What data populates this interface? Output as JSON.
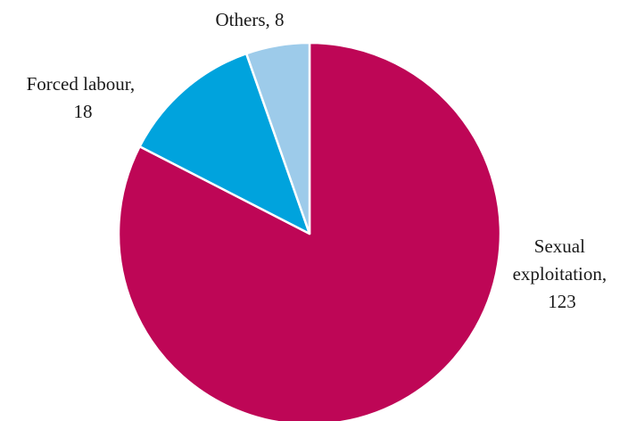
{
  "chart_data": {
    "type": "pie",
    "title": "",
    "slices": [
      {
        "label": "Sexual exploitation",
        "value": 123,
        "color": "#be0656",
        "label_lines": [
          "Sexual",
          "exploitation,",
          "123"
        ]
      },
      {
        "label": "Forced labour",
        "value": 18,
        "color": "#00a3dd",
        "label_lines": [
          "Forced labour,",
          "18"
        ]
      },
      {
        "label": "Others",
        "value": 8,
        "color": "#9dcbea",
        "label_lines": [
          "Others, 8"
        ]
      }
    ],
    "start_angle_deg": 0,
    "direction": "clockwise",
    "legend": "none"
  }
}
